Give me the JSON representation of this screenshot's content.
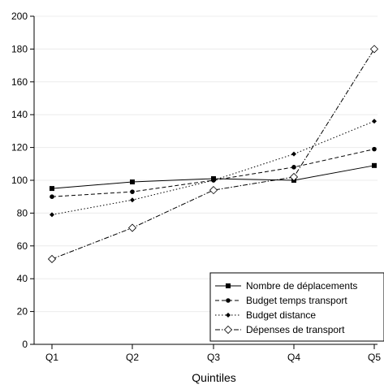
{
  "chart_data": {
    "type": "line",
    "title": "",
    "xlabel": "Quintiles",
    "ylabel": "",
    "categories": [
      "Q1",
      "Q2",
      "Q3",
      "Q4",
      "Q5"
    ],
    "ylim": [
      0,
      200
    ],
    "yticks": [
      0,
      20,
      40,
      60,
      80,
      100,
      120,
      140,
      160,
      180,
      200
    ],
    "grid": true,
    "legend_position": "bottom-right",
    "series": [
      {
        "name": "Nombre de déplacements",
        "values": [
          95,
          99,
          101,
          100,
          109
        ],
        "marker": "square-filled",
        "line_style": "solid",
        "color": "#000000"
      },
      {
        "name": "Budget temps transport",
        "values": [
          90,
          93,
          100,
          108,
          119
        ],
        "marker": "circle-filled",
        "line_style": "dashed",
        "color": "#000000"
      },
      {
        "name": "Budget distance",
        "values": [
          79,
          88,
          100,
          116,
          136
        ],
        "marker": "diamond-filled",
        "line_style": "dotted",
        "color": "#000000"
      },
      {
        "name": "Dépenses de transport",
        "values": [
          52,
          71,
          94,
          102,
          180
        ],
        "marker": "diamond-open",
        "line_style": "dashdot",
        "color": "#000000"
      }
    ]
  }
}
